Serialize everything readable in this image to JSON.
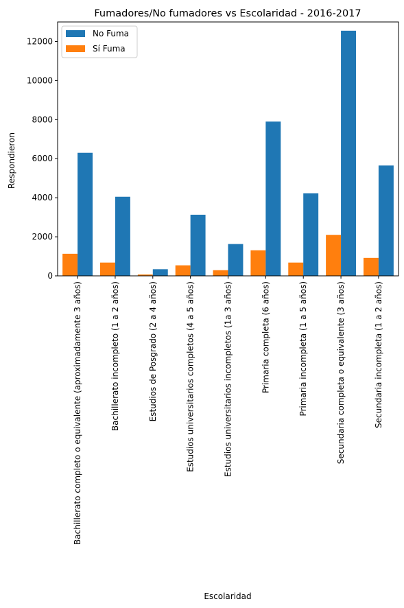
{
  "chart_data": {
    "type": "bar",
    "title": "Fumadores/No fumadores vs Escolaridad - 2016-2017",
    "xlabel": "Escolaridad",
    "ylabel": "Respondieron",
    "ylim": [
      0,
      13000
    ],
    "yticks": [
      0,
      2000,
      4000,
      6000,
      8000,
      10000,
      12000
    ],
    "grid": false,
    "legend_position": "top-left",
    "categories": [
      "Bachillerato completo o equivalente (aproximadamente 3 años)",
      "Bachillerato incompleto (1 a 2 años)",
      "Estudios de Posgrado (2 a 4 años)",
      "Estudios universitarios completos (4 a 5 años)",
      "Estudios universitarios incompletos (1a 3 años)",
      "Primaria completa (6 años)",
      "Primaria incompleta (1 a 5 años)",
      "Secundaria completa o equivalente (3 años)",
      "Secundaria incompleta (1 a 2 años)"
    ],
    "series": [
      {
        "name": "No Fuma",
        "color": "#1f77b4",
        "values": [
          6300,
          4050,
          340,
          3130,
          1630,
          7900,
          4230,
          12550,
          5650
        ]
      },
      {
        "name": "Sí Fuma",
        "color": "#ff7f0e",
        "values": [
          1130,
          680,
          70,
          540,
          290,
          1310,
          680,
          2100,
          920
        ]
      }
    ]
  }
}
